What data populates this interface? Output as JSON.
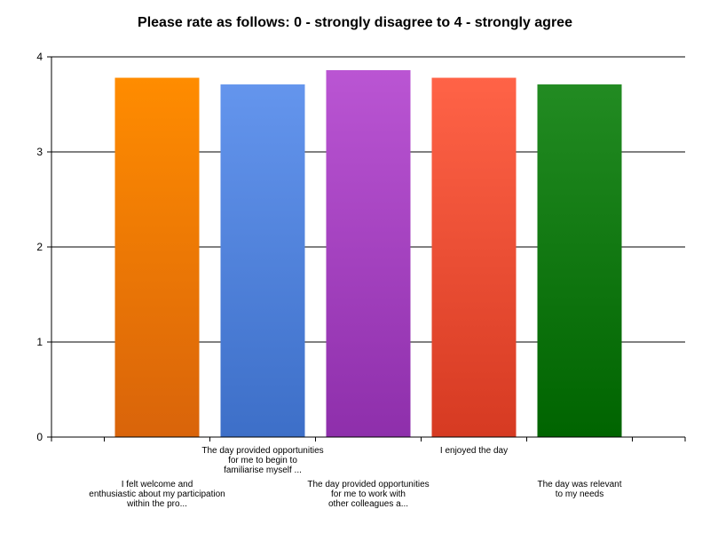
{
  "chart_data": {
    "type": "bar",
    "title": "Please rate as follows: 0 - strongly disagree to 4 - strongly agree",
    "xlabel": "",
    "ylabel": "",
    "ylim": [
      0,
      4
    ],
    "yticks": [
      "0",
      "1",
      "2",
      "3",
      "4"
    ],
    "grid": true,
    "categories": [
      [
        "I felt welcome and",
        "enthusiastic about my participation",
        "within the pro..."
      ],
      [
        "The day provided opportunities",
        "for me to begin to",
        "familiarise myself ..."
      ],
      [
        "The day provided opportunities",
        "for me to work with",
        "other colleagues a..."
      ],
      [
        "I enjoyed the day"
      ],
      [
        "The day was relevant",
        "to my needs"
      ]
    ],
    "values": [
      3.78,
      3.71,
      3.86,
      3.78,
      3.71
    ],
    "colors": [
      [
        "#ff8c00",
        "#d9640a"
      ],
      [
        "#6495ed",
        "#3d6fc8"
      ],
      [
        "#ba55d3",
        "#8e2fab"
      ],
      [
        "#ff6347",
        "#d63a22"
      ],
      [
        "#228b22",
        "#006400"
      ]
    ]
  }
}
